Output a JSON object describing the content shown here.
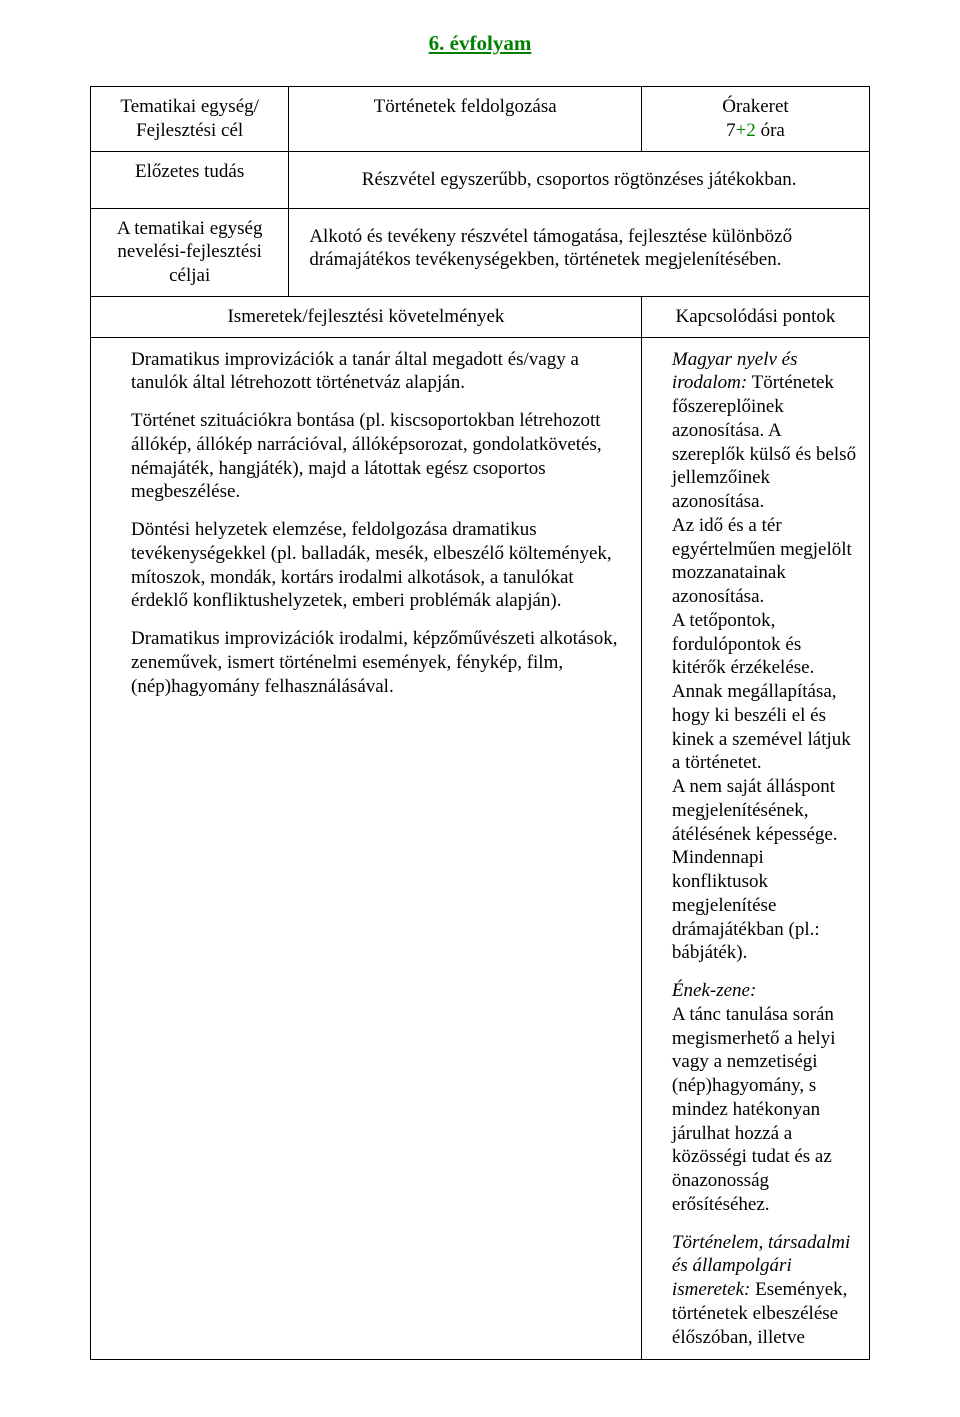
{
  "title": "6. évfolyam",
  "row1": {
    "left": "Tematikai egység/ Fejlesztési cél",
    "center": "Történetek feldolgozása",
    "right_label": "Órakeret",
    "hours_base": "7",
    "hours_plus": "+2",
    "hours_suffix": " óra"
  },
  "row2": {
    "left": "Előzetes tudás",
    "right": "Részvétel egyszerűbb, csoportos rögtönzéses játékokban."
  },
  "row3": {
    "left": "A tematikai egység nevelési-fejlesztési céljai",
    "right": "Alkotó és tevékeny részvétel támogatása, fejlesztése különböző drámajátékos tevékenységekben, történetek megjelenítésében."
  },
  "req_header": {
    "left": "Ismeretek/fejlesztési követelmények",
    "right": "Kapcsolódási pontok"
  },
  "left_paras": {
    "p1": "Dramatikus improvizációk a tanár által megadott és/vagy a tanulók által létrehozott történetváz alapján.",
    "p2": "Történet szituációkra bontása (pl. kiscsoportokban létrehozott állókép, állókép narrációval, állóképsorozat, gondolatkövetés, némajáték, hangjáték), majd a látottak egész csoportos megbeszélése.",
    "p3": "Döntési helyzetek elemzése, feldolgozása dramatikus tevékenységekkel (pl. balladák, mesék, elbeszélő költemények, mítoszok, mondák, kortárs irodalmi alkotások, a tanulókat érdeklő konfliktushelyzetek, emberi problémák alapján).",
    "p4": "Dramatikus improvizációk irodalmi, képzőművészeti alkotások, zeneművek, ismert történelmi események, fénykép, film, (nép)hagyomány felhasználásával."
  },
  "right_paras": {
    "p1_lead": "Magyar nyelv és irodalom:",
    "p1_body": " Történetek főszereplőinek azonosítása. A szereplők külső és belső jellemzőinek azonosítása.\nAz idő és a tér egyértelműen megjelölt mozzanatainak azonosítása.\nA tetőpontok, fordulópontok és kitérők érzékelése.\nAnnak megállapítása, hogy ki beszéli el és kinek a szemével látjuk a történetet.\nA nem saját álláspont megjelenítésének, átélésének képessége.\nMindennapi konfliktusok megjelenítése drámajátékban (pl.: bábjáték).",
    "p2_lead": "Ének-zene:",
    "p2_body": "\nA tánc tanulása során megismerhető a helyi vagy a nemzetiségi (nép)hagyomány, s mindez hatékonyan járulhat hozzá a közösségi tudat és az önazonosság erősítéséhez.",
    "p3_lead": "Történelem, társadalmi és állampolgári ismeretek:",
    "p3_body": " Események, történetek elbeszélése élőszóban, illetve"
  }
}
